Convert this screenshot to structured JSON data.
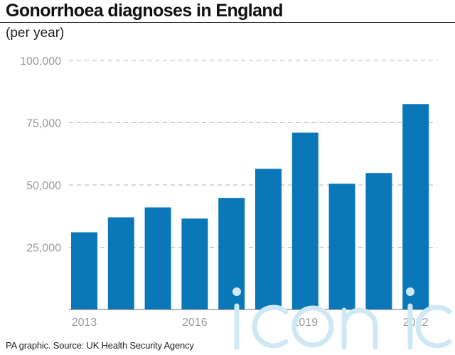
{
  "title": "Gonorrhoea diagnoses in England",
  "subtitle": "(per year)",
  "source": "PA graphic. Source: UK Health Security Agency",
  "watermark": "iconic",
  "colors": {
    "bar": "#0a77b8",
    "tick_text": "#9a9a9a",
    "grid": "#b5b5b5",
    "watermark": "#cfe8f5"
  },
  "chart_data": {
    "type": "bar",
    "title": "Gonorrhoea diagnoses in England",
    "xlabel": "",
    "ylabel": "(per year)",
    "categories": [
      "2013",
      "2014",
      "2015",
      "2016",
      "2017",
      "2018",
      "2019",
      "2020",
      "2021",
      "2022"
    ],
    "values": [
      31000,
      37000,
      41000,
      36500,
      44800,
      56500,
      71000,
      50500,
      54800,
      82500
    ],
    "x_tick_labels": [
      "2013",
      "",
      "",
      "2016",
      "",
      "",
      "2019",
      "",
      "",
      "2022"
    ],
    "y_ticks": [
      25000,
      50000,
      75000,
      100000
    ],
    "y_tick_labels": [
      "25,000",
      "50,000",
      "75,000",
      "100,000"
    ],
    "ylim": [
      0,
      100000
    ],
    "grid": true
  }
}
